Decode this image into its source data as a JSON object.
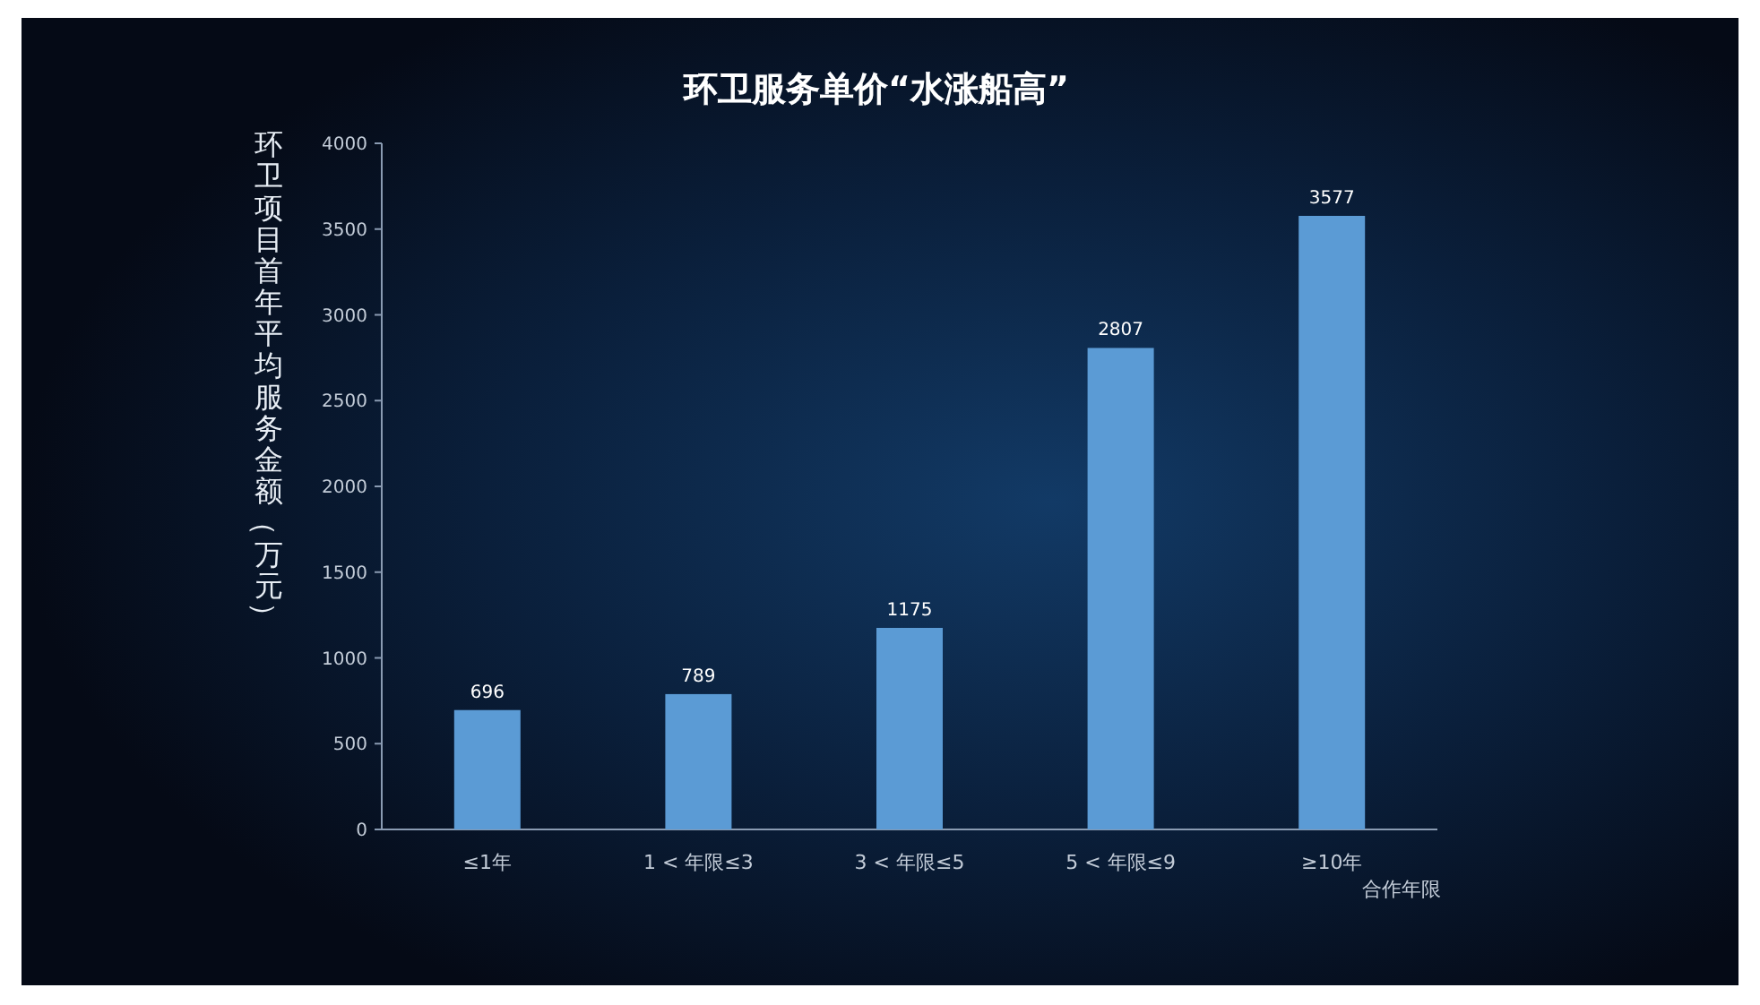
{
  "chart_data": {
    "type": "bar",
    "title": "环卫服务单价“水涨船高”",
    "ylabel": "环卫项目首年平均服务金额（万元）",
    "xlabel": "合作年限",
    "categories": [
      "≤1年",
      "1 < 年限≤3",
      "3 < 年限≤5",
      "5 < 年限≤9",
      "≥10年"
    ],
    "values": [
      696,
      789,
      1175,
      2807,
      3577
    ],
    "color": "#5b9bd5",
    "ylim": [
      0,
      4000
    ],
    "yticks": [
      0,
      500,
      1000,
      1500,
      2000,
      2500,
      3000,
      3500,
      4000
    ],
    "data_labels": true
  }
}
